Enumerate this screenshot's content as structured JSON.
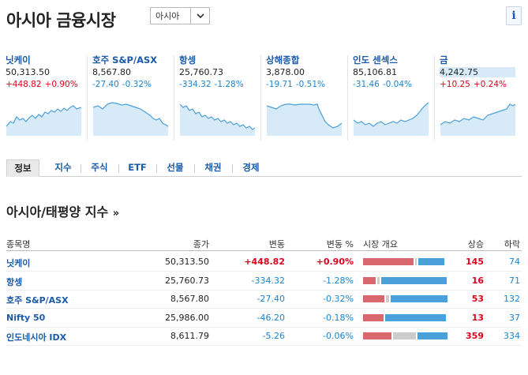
{
  "header": {
    "title": "아시아 금융시장",
    "region_select": "아시아",
    "info_icon": "i"
  },
  "tickers": [
    {
      "name": "닛케이",
      "price": "50,313.50",
      "change": "+448.82",
      "pct": "+0.90%",
      "dir": "up"
    },
    {
      "name": "호주 S&P/ASX",
      "price": "8,567.80",
      "change": "-27.40",
      "pct": "-0.32%",
      "dir": "down"
    },
    {
      "name": "항셍",
      "price": "25,760.73",
      "change": "-334.32",
      "pct": "-1.28%",
      "dir": "down"
    },
    {
      "name": "상해종합",
      "price": "3,878.00",
      "change": "-19.71",
      "pct": "-0.51%",
      "dir": "down"
    },
    {
      "name": "인도 센섹스",
      "price": "85,106.81",
      "change": "-31.46",
      "pct": "-0.04%",
      "dir": "down"
    },
    {
      "name": "금",
      "price": "4,242.75",
      "change": "+10.25",
      "pct": "+0.24%",
      "dir": "up"
    }
  ],
  "tabs": [
    "정보",
    "지수",
    "주식",
    "ETF",
    "선물",
    "채권",
    "경제"
  ],
  "section": {
    "title": "아시아/태평양 지수",
    "more": "»"
  },
  "table": {
    "headers": {
      "name": "종목명",
      "close": "종가",
      "change": "변동",
      "pct": "변동 %",
      "overview": "시장 개요",
      "adv": "상승",
      "dec": "하락"
    },
    "rows": [
      {
        "name": "닛케이",
        "close": "50,313.50",
        "change": "+448.82",
        "pct": "+0.90%",
        "dir": "up",
        "adv": "145",
        "dec": "74",
        "breadth": {
          "up": 0.62,
          "flat": 0.02,
          "down": 0.32
        }
      },
      {
        "name": "항셍",
        "close": "25,760.73",
        "change": "-334.32",
        "pct": "-1.28%",
        "dir": "down",
        "adv": "16",
        "dec": "71",
        "breadth": {
          "up": 0.16,
          "flat": 0.03,
          "down": 0.81
        }
      },
      {
        "name": "호주 S&P/ASX",
        "close": "8,567.80",
        "change": "-27.40",
        "pct": "-0.32%",
        "dir": "down",
        "adv": "53",
        "dec": "132",
        "breadth": {
          "up": 0.26,
          "flat": 0.04,
          "down": 0.7
        }
      },
      {
        "name": "Nifty 50",
        "close": "25,986.00",
        "change": "-46.20",
        "pct": "-0.18%",
        "dir": "down",
        "adv": "13",
        "dec": "37",
        "breadth": {
          "up": 0.25,
          "flat": 0.0,
          "down": 0.75
        }
      },
      {
        "name": "인도네시아 IDX",
        "close": "8,611.79",
        "change": "-5.26",
        "pct": "-0.06%",
        "dir": "down",
        "adv": "359",
        "dec": "334",
        "breadth": {
          "up": 0.35,
          "flat": 0.28,
          "down": 0.37
        }
      }
    ]
  },
  "colors": {
    "up": "#e0001b",
    "down": "#1a84d4",
    "link": "#1a5aa8",
    "breadth_up": "#d9686e",
    "breadth_flat": "#cccccc",
    "breadth_down": "#4aa0d8",
    "spark_fill": "#d7eaf8",
    "spark_line": "#4aa0d8"
  }
}
